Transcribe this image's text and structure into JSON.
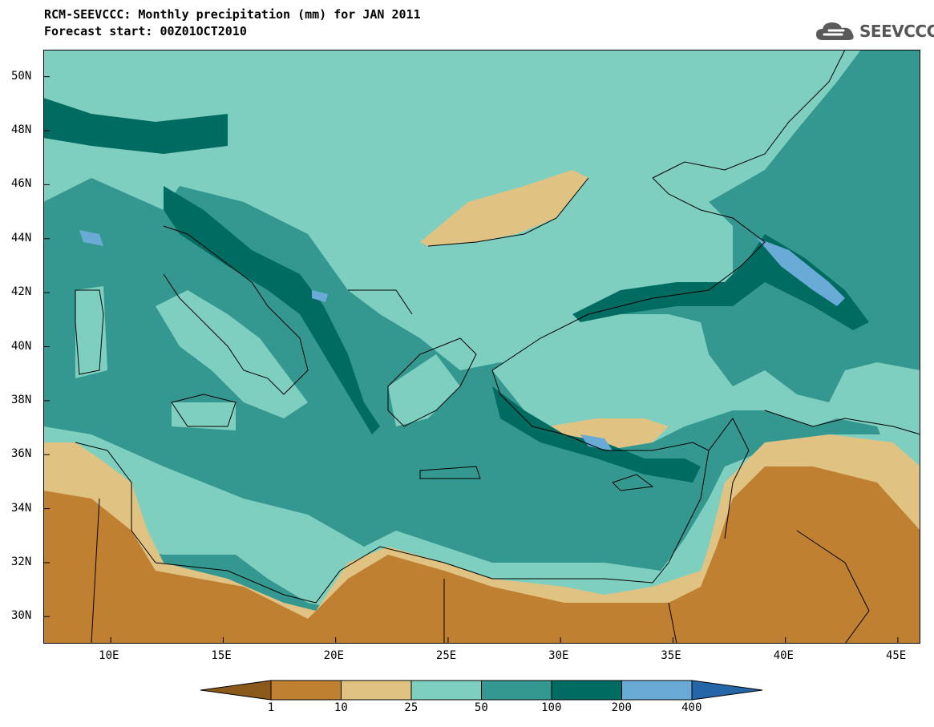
{
  "header": {
    "title_line1": "RCM-SEEVCCC: Monthly precipitation (mm) for JAN 2011",
    "title_line2": "Forecast start: 00Z01OCT2010"
  },
  "logo": {
    "text": "SEEVCCC",
    "icon": "cloud-logo-icon"
  },
  "map": {
    "lat_labels": [
      "50N",
      "48N",
      "46N",
      "44N",
      "42N",
      "40N",
      "38N",
      "36N",
      "34N",
      "32N",
      "30N"
    ],
    "lon_labels": [
      "10E",
      "15E",
      "20E",
      "25E",
      "30E",
      "35E",
      "40E",
      "45E"
    ],
    "lon_range": [
      7,
      46
    ],
    "lat_range": [
      29,
      51
    ]
  },
  "legend": {
    "bounds": [
      "1",
      "10",
      "25",
      "50",
      "100",
      "200",
      "400"
    ],
    "colors": [
      "#8b5a1b",
      "#bf8032",
      "#e0c382",
      "#7ecfc0",
      "#359890",
      "#006b60",
      "#6aaad6",
      "#2566a8"
    ]
  }
}
